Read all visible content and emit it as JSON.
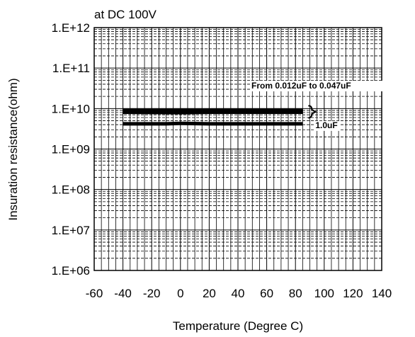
{
  "chart_data": {
    "type": "line",
    "title": "at DC 100V",
    "xlabel": "Temperature (Degree C)",
    "ylabel": "Insuration resistance(ohm)",
    "xlim": [
      -60,
      140
    ],
    "ylim_log10": [
      6,
      12
    ],
    "y_scale": "log",
    "grid": true,
    "x_ticks": [
      -60,
      -40,
      -20,
      0,
      20,
      40,
      60,
      80,
      100,
      120,
      140
    ],
    "x_tick_labels": [
      "-60",
      "-40",
      "-20",
      "0",
      "20",
      "40",
      "60",
      "80",
      "100",
      "120",
      "140"
    ],
    "y_tick_labels": [
      "1.E+12",
      "1.E+11",
      "1.E+10",
      "1.E+09",
      "1.E+08",
      "1.E+07",
      "1.E+06"
    ],
    "y_tick_exponents": [
      12,
      11,
      10,
      9,
      8,
      7,
      6
    ],
    "series": [
      {
        "name": "From 0.012uF to 0.047uF",
        "x": [
          -40,
          0,
          20,
          85
        ],
        "y_upper": [
          10000000000.0,
          10000000000.0,
          10000000000.0,
          10000000000.0
        ],
        "y_lower": [
          7500000000.0,
          7300000000.0,
          7500000000.0,
          7500000000.0
        ]
      },
      {
        "name": "1.0uF",
        "x": [
          -40,
          -10,
          0,
          20,
          85
        ],
        "y": [
          4200000000.0,
          4200000000.0,
          4300000000.0,
          4200000000.0,
          4200000000.0
        ]
      }
    ],
    "annotations": [
      {
        "text": "From 0.012uF to 0.047uF",
        "target": "From 0.012uF to 0.047uF"
      },
      {
        "text": "1.0uF",
        "target": "1.0uF"
      }
    ]
  }
}
